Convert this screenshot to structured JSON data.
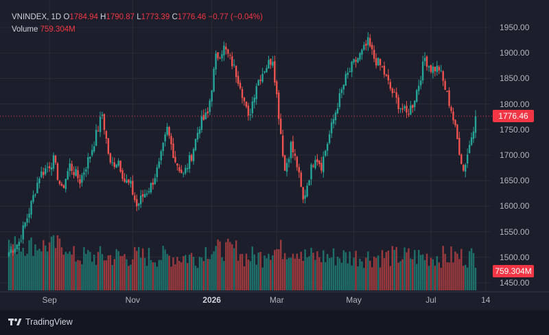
{
  "legend": {
    "symbol": "VNINDEX, 1D",
    "o_prefix": "O",
    "open": "1784.94",
    "h_prefix": "H",
    "high": "1790.87",
    "l_prefix": "L",
    "low": "1773.39",
    "c_prefix": "C",
    "close": "1776.46",
    "change": "−0.77 (−0.04%)",
    "volume_label": "Volume",
    "volume": "759.304M"
  },
  "brand": "TradingView",
  "colors": {
    "up": "#26a69a",
    "down": "#ef5350",
    "vol_up": "#1f6f6a",
    "vol_down": "#9b3a3e",
    "background": "#131722",
    "last_price_line": "#f23645"
  },
  "chart_data": {
    "type": "candlestick",
    "symbol": "VNINDEX",
    "interval": "1D",
    "last_price": 1776.46,
    "last_price_label": "1776.46",
    "y_ticks": [
      "1950.00",
      "1900.00",
      "1850.00",
      "1800.00",
      "1750.00",
      "1700.00",
      "1650.00",
      "1600.00",
      "1550.00",
      "1500.00",
      "1450.00"
    ],
    "y_tick_values": [
      1950,
      1900,
      1850,
      1800,
      1750,
      1700,
      1650,
      1600,
      1550,
      1500,
      1450
    ],
    "ylim": [
      1432,
      1987
    ],
    "x_ticks": [
      {
        "label": "Sep",
        "index": 20,
        "bold": false
      },
      {
        "label": "Nov",
        "index": 61,
        "bold": false
      },
      {
        "label": "2026",
        "index": 100,
        "bold": true
      },
      {
        "label": "Mar",
        "index": 132,
        "bold": false
      },
      {
        "label": "May",
        "index": 170,
        "bold": false
      },
      {
        "label": "Jul",
        "index": 208,
        "bold": false
      },
      {
        "label": "14",
        "index": 235,
        "bold": false
      }
    ],
    "anchors": [
      [
        0,
        1510
      ],
      [
        5,
        1530
      ],
      [
        10,
        1590
      ],
      [
        15,
        1660
      ],
      [
        22,
        1690
      ],
      [
        26,
        1630
      ],
      [
        30,
        1680
      ],
      [
        35,
        1650
      ],
      [
        40,
        1700
      ],
      [
        46,
        1780
      ],
      [
        50,
        1680
      ],
      [
        54,
        1690
      ],
      [
        57,
        1650
      ],
      [
        60,
        1640
      ],
      [
        63,
        1600
      ],
      [
        66,
        1620
      ],
      [
        70,
        1640
      ],
      [
        74,
        1680
      ],
      [
        78,
        1750
      ],
      [
        82,
        1690
      ],
      [
        86,
        1660
      ],
      [
        90,
        1700
      ],
      [
        94,
        1760
      ],
      [
        98,
        1780
      ],
      [
        102,
        1890
      ],
      [
        106,
        1910
      ],
      [
        110,
        1880
      ],
      [
        114,
        1840
      ],
      [
        118,
        1770
      ],
      [
        122,
        1840
      ],
      [
        126,
        1870
      ],
      [
        130,
        1890
      ],
      [
        133,
        1780
      ],
      [
        136,
        1670
      ],
      [
        139,
        1720
      ],
      [
        142,
        1680
      ],
      [
        145,
        1610
      ],
      [
        148,
        1660
      ],
      [
        151,
        1700
      ],
      [
        154,
        1680
      ],
      [
        158,
        1740
      ],
      [
        162,
        1800
      ],
      [
        166,
        1850
      ],
      [
        170,
        1880
      ],
      [
        174,
        1900
      ],
      [
        177,
        1920
      ],
      [
        180,
        1890
      ],
      [
        184,
        1870
      ],
      [
        188,
        1830
      ],
      [
        192,
        1800
      ],
      [
        196,
        1780
      ],
      [
        199,
        1800
      ],
      [
        202,
        1840
      ],
      [
        205,
        1890
      ],
      [
        208,
        1870
      ],
      [
        212,
        1870
      ],
      [
        215,
        1830
      ],
      [
        218,
        1790
      ],
      [
        221,
        1730
      ],
      [
        224,
        1670
      ],
      [
        227,
        1720
      ],
      [
        230,
        1775
      ]
    ],
    "volume_ylim": [
      0,
      1600
    ]
  }
}
